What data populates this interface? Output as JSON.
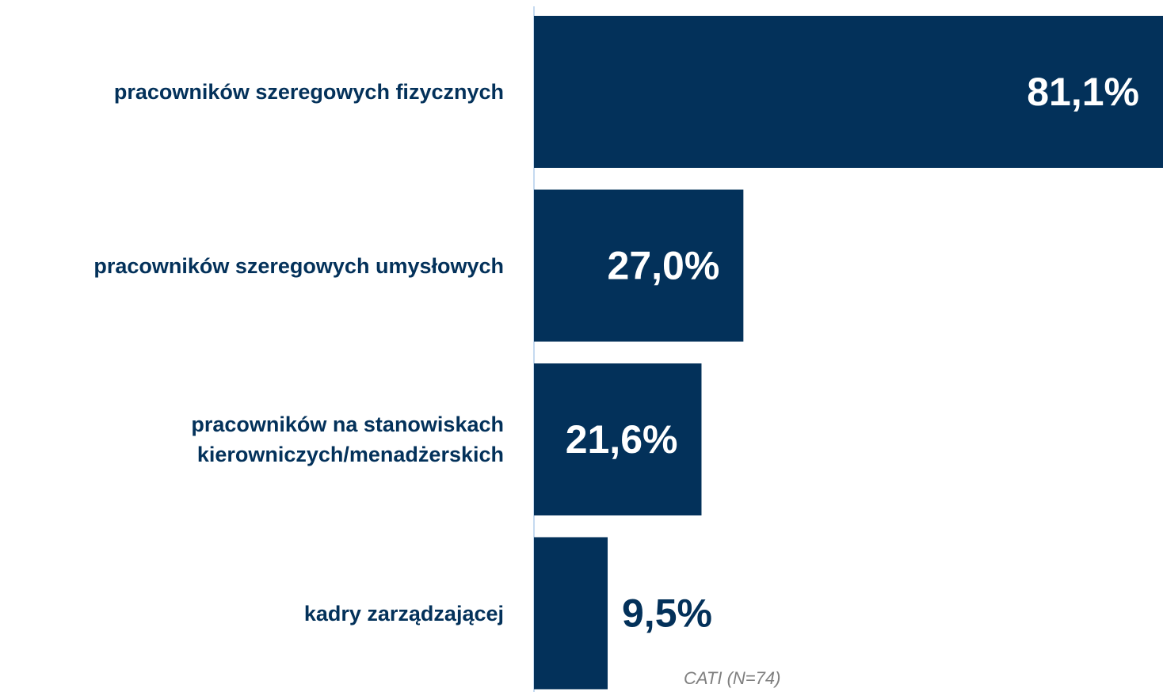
{
  "chart_data": {
    "type": "bar",
    "orientation": "horizontal",
    "categories": [
      "pracowników szeregowych fizycznych",
      "pracowników szeregowych umysłowych",
      "pracowników na stanowiskach kierowniczych/menadżerskich",
      "kadry zarządzającej"
    ],
    "values": [
      81.1,
      27.0,
      21.6,
      9.5
    ],
    "value_labels": [
      "81,1%",
      "27,0%",
      "21,6%",
      "9,5%"
    ],
    "color": "#03315a",
    "xlim": [
      0,
      81.1
    ],
    "note": "CATI (N=74)"
  }
}
